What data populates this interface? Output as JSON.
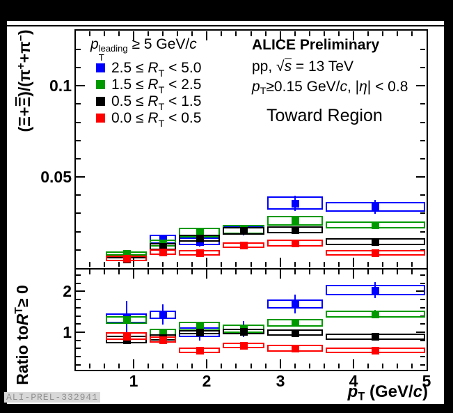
{
  "watermark": "ALI-PREL-332941",
  "colors": {
    "page_background": "#000000",
    "canvas_background": "#ffffff",
    "frame": "#000000",
    "series_blue": "#0000ff",
    "series_green": "#009900",
    "series_black": "#000000",
    "series_red": "#ff0000"
  },
  "info": {
    "alice": [
      {
        "t": "ALICE Preliminary",
        "b": true
      }
    ],
    "energy": [
      {
        "t": "pp, "
      },
      {
        "t": "√"
      },
      {
        "t": "s",
        "it": true,
        "bar": true
      },
      {
        "t": " = 13 TeV"
      }
    ],
    "cuts": [
      {
        "t": "p",
        "it": true
      },
      {
        "t": "T",
        "sub": true
      },
      {
        "t": "≥0.15 GeV/"
      },
      {
        "t": "c",
        "it": true
      },
      {
        "t": ", |"
      },
      {
        "t": "η",
        "it": true
      },
      {
        "t": "| < 0.8"
      }
    ],
    "region": [
      {
        "t": "Toward Region"
      }
    ]
  },
  "legend": {
    "title": [
      {
        "t": "p",
        "it": true
      },
      {
        "stack": [
          "leading",
          "T"
        ]
      },
      {
        "t": " ≥ 5 GeV/"
      },
      {
        "t": "c",
        "it": true
      }
    ],
    "entries": [
      {
        "color": "#0000ff",
        "label": [
          {
            "t": "2.5 ≤ "
          },
          {
            "t": "R",
            "it": true
          },
          {
            "t": "T",
            "sub": true
          },
          {
            "t": " < 5.0"
          }
        ]
      },
      {
        "color": "#009900",
        "label": [
          {
            "t": "1.5 ≤ "
          },
          {
            "t": "R",
            "it": true
          },
          {
            "t": "T",
            "sub": true
          },
          {
            "t": " < 2.5"
          }
        ]
      },
      {
        "color": "#000000",
        "label": [
          {
            "t": "0.5 ≤ "
          },
          {
            "t": "R",
            "it": true
          },
          {
            "t": "T",
            "sub": true
          },
          {
            "t": " < 1.5"
          }
        ]
      },
      {
        "color": "#ff0000",
        "label": [
          {
            "t": "0.0 ≤ "
          },
          {
            "t": "R",
            "it": true
          },
          {
            "t": "T",
            "sub": true
          },
          {
            "t": " < 0.5"
          }
        ]
      }
    ]
  },
  "axes": {
    "x_title": [
      {
        "t": "p",
        "it": true
      },
      {
        "t": "T",
        "sub": true
      },
      {
        "t": " (GeV/"
      },
      {
        "t": "c",
        "it": true
      },
      {
        "t": ")"
      }
    ],
    "x_tick_labels": [
      {
        "v": 1,
        "l": "1"
      },
      {
        "v": 2,
        "l": "2"
      },
      {
        "v": 3,
        "l": "3"
      },
      {
        "v": 4,
        "l": "4"
      },
      {
        "v": 5,
        "l": "5"
      }
    ],
    "top_y_title": [
      {
        "t": "("
      },
      {
        "t": "Ξ"
      },
      {
        "t": "+"
      },
      {
        "t": "Ξ",
        "bar": true
      },
      {
        "t": ")/("
      },
      {
        "t": "π"
      },
      {
        "t": "+",
        "sup": true
      },
      {
        "t": "+"
      },
      {
        "t": "π"
      },
      {
        "t": "−",
        "sup": true
      },
      {
        "t": ")"
      }
    ],
    "top_y_tick_labels": [
      {
        "v": 0.05,
        "l": "0.05"
      },
      {
        "v": 0.1,
        "l": "0.1"
      }
    ],
    "ratio_y_title": [
      {
        "t": "Ratio to "
      },
      {
        "t": "R",
        "it": true
      },
      {
        "t": "T",
        "sub": true
      },
      {
        "t": " ≥ 0"
      }
    ],
    "ratio_y_tick_labels": [
      {
        "v": 1,
        "l": "1"
      },
      {
        "v": 2,
        "l": "2"
      }
    ]
  },
  "chart_data": [
    {
      "type": "scatter",
      "panel": "top",
      "title": "",
      "ylabel": "(Xi + anti-Xi) / (pi+ + pi-)",
      "xlabel": "pT (GeV/c)",
      "xlim": [
        0.2,
        5.0
      ],
      "ylim": [
        0.0,
        0.1306
      ],
      "yticks": [
        0.05,
        0.1
      ],
      "y_minor_step": 0.01,
      "x_minor_step": 0.2,
      "x_major_ticks": [
        1,
        2,
        3,
        4
      ],
      "grid": false,
      "legend_position": "top-left",
      "bin_edges": [
        0.6,
        1.2,
        1.6,
        2.2,
        2.8,
        3.6,
        5.0
      ],
      "x": [
        0.9,
        1.4,
        1.9,
        2.5,
        3.2,
        4.3
      ],
      "series": [
        {
          "name": "2.5 <= RT < 5.0",
          "color": "#0000ff",
          "y": [
            0.0078,
            0.0157,
            0.0146,
            0.0208,
            0.0356,
            0.0335
          ],
          "sys": [
            0.0012,
            0.0025,
            0.0021,
            0.0022,
            0.0037,
            0.0026
          ],
          "stat": [
            0.0022,
            0.0013,
            0.0027,
            0.0028,
            0.0041,
            0.0038
          ]
        },
        {
          "name": "1.5 <= RT < 2.5",
          "color": "#009900",
          "y": [
            0.008,
            0.0138,
            0.0194,
            0.0212,
            0.0259,
            0.0236
          ],
          "sys": [
            0.0012,
            0.0018,
            0.0027,
            0.0023,
            0.0026,
            0.0019
          ],
          "stat": [
            0.0008,
            0.0008,
            0.001,
            0.001,
            0.0012,
            0.0012
          ]
        },
        {
          "name": "0.5 <= RT < 1.5",
          "color": "#000000",
          "y": [
            0.0049,
            0.0119,
            0.0165,
            0.0205,
            0.021,
            0.0146
          ],
          "sys": [
            0.0011,
            0.0019,
            0.002,
            0.0021,
            0.0019,
            0.0019
          ],
          "stat": [
            0.0006,
            0.0006,
            0.0008,
            0.0008,
            0.0008,
            0.0008
          ]
        },
        {
          "name": "0.0 <= RT < 0.5",
          "color": "#ff0000",
          "y": [
            0.0054,
            0.0089,
            0.0085,
            0.0125,
            0.0136,
            0.0083
          ],
          "sys": [
            0.0014,
            0.0015,
            0.0015,
            0.0016,
            0.0019,
            0.0016
          ],
          "stat": [
            0.0006,
            0.0006,
            0.0006,
            0.0006,
            0.0008,
            0.0008
          ]
        }
      ]
    },
    {
      "type": "scatter",
      "panel": "ratio",
      "title": "",
      "ylabel": "Ratio to RT >= 0",
      "xlabel": "pT (GeV/c)",
      "xlim": [
        0.2,
        5.0
      ],
      "ylim": [
        0.08,
        2.57
      ],
      "yticks": [
        1,
        2
      ],
      "y_minor_step": 0.2,
      "x_minor_step": 0.2,
      "x_major_ticks": [
        1,
        2,
        3,
        4
      ],
      "grid": false,
      "bin_edges": [
        0.6,
        1.2,
        1.6,
        2.2,
        2.8,
        3.6,
        5.0
      ],
      "x": [
        0.9,
        1.4,
        1.9,
        2.5,
        3.2,
        4.3
      ],
      "series": [
        {
          "name": "2.5 <= RT < 5.0",
          "color": "#0000ff",
          "y": [
            1.34,
            1.43,
            1.0,
            1.08,
            1.69,
            2.03
          ],
          "sys": [
            0.115,
            0.1,
            0.115,
            0.11,
            0.115,
            0.12
          ],
          "stat": [
            0.42,
            0.25,
            0.21,
            0.2,
            0.23,
            0.2
          ]
        },
        {
          "name": "1.5 <= RT < 2.5",
          "color": "#009900",
          "y": [
            1.3,
            1.0,
            1.15,
            1.09,
            1.23,
            1.44
          ],
          "sys": [
            0.1,
            0.085,
            0.11,
            0.1,
            0.1,
            0.09
          ],
          "stat": [
            0.06,
            0.05,
            0.06,
            0.06,
            0.07,
            0.1
          ]
        },
        {
          "name": "0.5 <= RT < 1.5",
          "color": "#000000",
          "y": [
            0.82,
            0.87,
            1.0,
            1.02,
            0.99,
            0.89
          ],
          "sys": [
            0.1,
            0.075,
            0.05,
            0.07,
            0.07,
            0.07
          ],
          "stat": [
            0.05,
            0.04,
            0.04,
            0.04,
            0.04,
            0.05
          ]
        },
        {
          "name": "0.0 <= RT < 0.5",
          "color": "#ff0000",
          "y": [
            0.9,
            0.82,
            0.56,
            0.68,
            0.61,
            0.56
          ],
          "sys": [
            0.095,
            0.075,
            0.07,
            0.065,
            0.085,
            0.07
          ],
          "stat": [
            0.05,
            0.05,
            0.04,
            0.04,
            0.05,
            0.05
          ]
        }
      ]
    }
  ]
}
